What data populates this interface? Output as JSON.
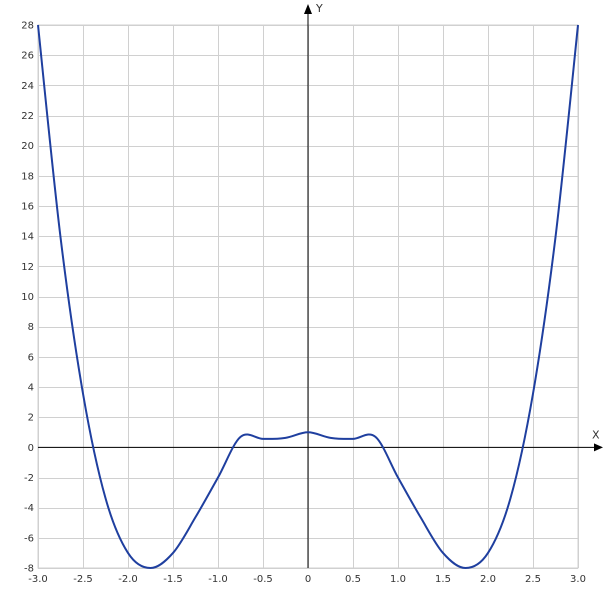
{
  "chart_data": {
    "type": "line",
    "title": "",
    "xlabel": "X",
    "ylabel": "Y",
    "xlim": [
      -3.0,
      3.0
    ],
    "ylim": [
      -8,
      28
    ],
    "x_ticks": [
      -3.0,
      -2.5,
      -2.0,
      -1.5,
      -1.0,
      -0.5,
      0,
      0.5,
      1.0,
      1.5,
      2.0,
      2.5,
      3.0
    ],
    "x_tick_labels": [
      "-3.0",
      "-2.5",
      "-2.0",
      "-1.5",
      "-1.0",
      "-0.5",
      "0",
      "0.5",
      "1.0",
      "1.5",
      "2.0",
      "2.5",
      "3.0"
    ],
    "y_ticks": [
      -8,
      -6,
      -4,
      -2,
      0,
      2,
      4,
      6,
      8,
      10,
      12,
      14,
      16,
      18,
      20,
      22,
      24,
      26,
      28
    ],
    "y_tick_labels": [
      "-8",
      "-6",
      "-4",
      "-2",
      "0",
      "2",
      "4",
      "6",
      "8",
      "10",
      "12",
      "14",
      "16",
      "18",
      "20",
      "22",
      "24",
      "26",
      "28"
    ],
    "grid": true,
    "series": [
      {
        "color": "#1f3f9f",
        "x": [
          -3.0,
          -2.75,
          -2.5,
          -2.25,
          -2.0,
          -1.75,
          -1.5,
          -1.25,
          -1.0,
          -0.75,
          -0.5,
          -0.25,
          0,
          0.25,
          0.5,
          0.75,
          1.0,
          1.25,
          1.5,
          1.75,
          2.0,
          2.25,
          2.5,
          2.75,
          3.0
        ],
        "y": [
          28.0,
          13.94,
          3.56,
          -3.37,
          -7.0,
          -8.0,
          -7.0,
          -4.63,
          -2.0,
          0.69,
          0.56,
          0.63,
          1.0,
          0.63,
          0.56,
          0.69,
          -2.0,
          -4.63,
          -7.0,
          -8.0,
          -7.0,
          -3.37,
          3.56,
          13.94,
          28.0
        ]
      }
    ]
  },
  "colors": {
    "grid": "#d0d0d0",
    "axis": "#000000",
    "line": "#1f3f9f"
  }
}
